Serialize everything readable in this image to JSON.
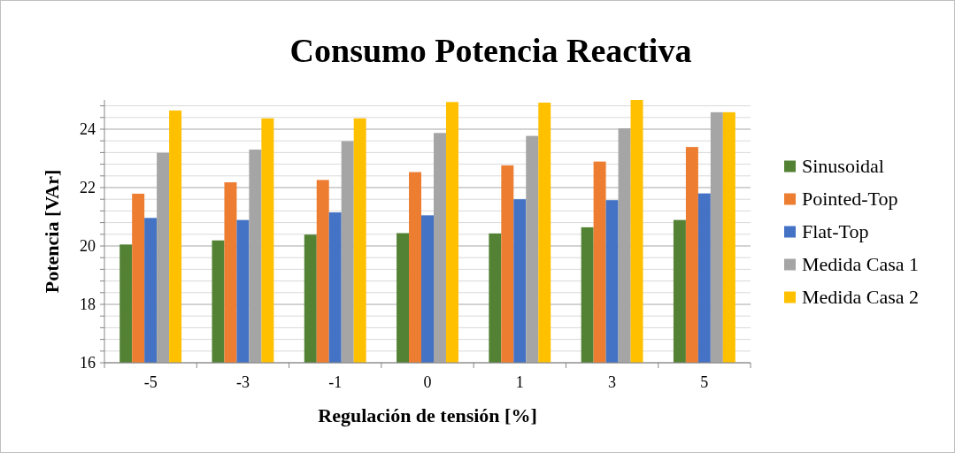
{
  "chart_data": {
    "type": "bar",
    "title": "Consumo Potencia Reactiva",
    "xlabel": "Regulación de tensión [%]",
    "ylabel": "Potencia [VAr]",
    "categories": [
      "-5",
      "-3",
      "-1",
      "0",
      "1",
      "3",
      "5"
    ],
    "series": [
      {
        "name": "Sinusoidal",
        "color": "#548235",
        "values": [
          20.05,
          20.19,
          20.39,
          20.44,
          20.43,
          20.64,
          20.89
        ]
      },
      {
        "name": "Pointed-Top",
        "color": "#ed7d31",
        "values": [
          21.79,
          22.18,
          22.26,
          22.53,
          22.76,
          22.89,
          23.39
        ]
      },
      {
        "name": "Flat-Top",
        "color": "#4472c4",
        "values": [
          20.96,
          20.89,
          21.15,
          21.05,
          21.6,
          21.57,
          21.8
        ]
      },
      {
        "name": "Medida Casa 1",
        "color": "#a5a5a5",
        "values": [
          23.19,
          23.3,
          23.59,
          23.87,
          23.77,
          24.03,
          24.58
        ]
      },
      {
        "name": "Medida Casa 2",
        "color": "#ffc000",
        "values": [
          24.64,
          24.37,
          24.37,
          24.93,
          24.91,
          25.0,
          24.58
        ]
      }
    ],
    "ylim": [
      16,
      25
    ],
    "yticks": [
      16,
      {
        "value": 16.4,
        "label": null
      },
      {
        "value": 16.8,
        "label": null
      },
      {
        "value": 17.2,
        "label": null
      },
      {
        "value": 17.6,
        "label": null
      },
      18,
      {
        "value": 18.4,
        "label": null
      },
      {
        "value": 18.8,
        "label": null
      },
      {
        "value": 19.2,
        "label": null
      },
      {
        "value": 19.6,
        "label": null
      },
      20,
      {
        "value": 20.4,
        "label": null
      },
      {
        "value": 20.8,
        "label": null
      },
      {
        "value": 21.2,
        "label": null
      },
      {
        "value": 21.6,
        "label": null
      },
      22,
      {
        "value": 22.4,
        "label": null
      },
      {
        "value": 22.8,
        "label": null
      },
      {
        "value": 23.2,
        "label": null
      },
      {
        "value": 23.6,
        "label": null
      },
      24,
      {
        "value": 24.4,
        "label": null
      },
      {
        "value": 24.8,
        "label": null
      }
    ],
    "grid": true,
    "legend": "right"
  }
}
